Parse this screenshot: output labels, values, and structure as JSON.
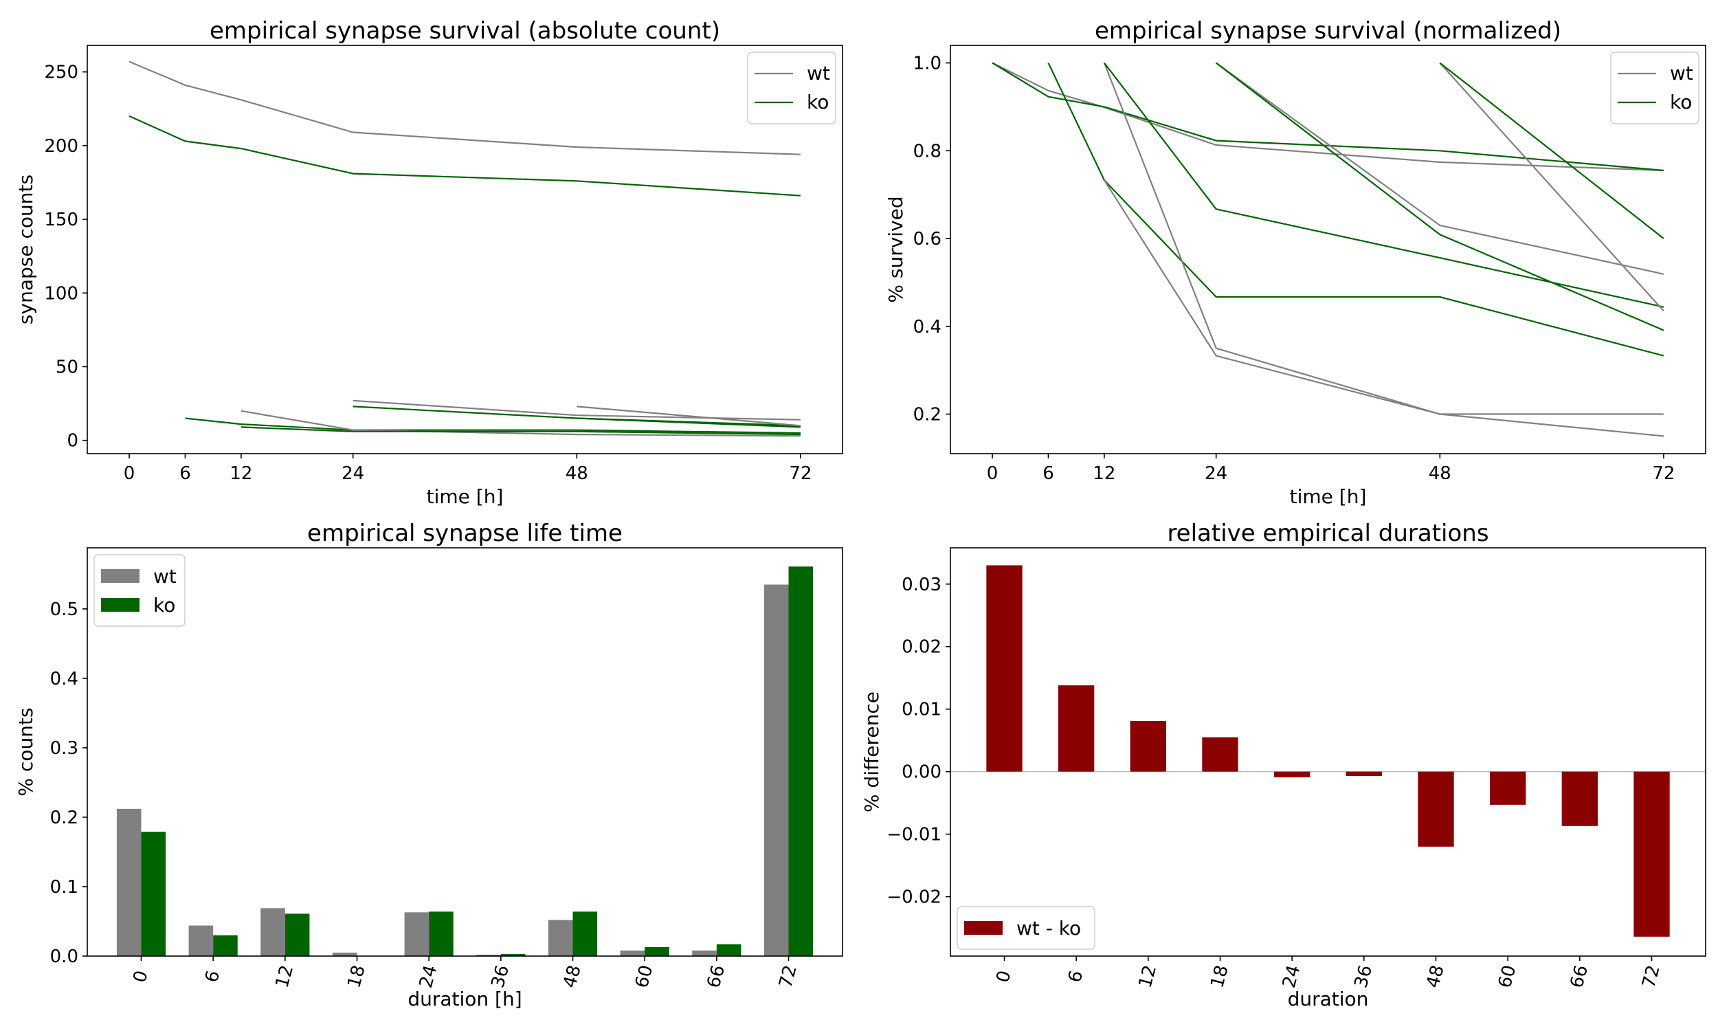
{
  "chart_data": [
    {
      "type": "line",
      "title": "empirical synapse survival (absolute count)",
      "xlabel": "time [h]",
      "ylabel": "synapse counts",
      "xlim": [
        -4.5,
        76.5
      ],
      "ylim": [
        -9,
        268
      ],
      "xticks": [
        0,
        6,
        12,
        24,
        48,
        72
      ],
      "yticks": [
        0,
        50,
        100,
        150,
        200,
        250
      ],
      "legend": {
        "position": "top-right",
        "entries": [
          {
            "label": "wt",
            "color": "#808080"
          },
          {
            "label": "ko",
            "color": "#006400"
          }
        ]
      },
      "series": [
        {
          "group": "wt",
          "color": "#808080",
          "x": [
            0,
            6,
            12,
            24,
            48,
            72
          ],
          "y": [
            257,
            241,
            231,
            209,
            199,
            194
          ]
        },
        {
          "group": "ko",
          "color": "#006400",
          "x": [
            0,
            6,
            12,
            24,
            48,
            72
          ],
          "y": [
            220,
            203,
            198,
            181,
            176,
            166
          ]
        },
        {
          "group": "ko",
          "color": "#006400",
          "x": [
            6,
            12,
            24,
            48,
            72
          ],
          "y": [
            15,
            11,
            7,
            7,
            5
          ]
        },
        {
          "group": "wt",
          "color": "#808080",
          "x": [
            12,
            24,
            48,
            72
          ],
          "y": [
            20,
            7,
            4,
            3
          ]
        },
        {
          "group": "ko",
          "color": "#006400",
          "x": [
            12,
            24,
            48,
            72
          ],
          "y": [
            9,
            6,
            6,
            4
          ]
        },
        {
          "group": "wt",
          "color": "#808080",
          "x": [
            24,
            48,
            72
          ],
          "y": [
            27,
            17,
            14
          ]
        },
        {
          "group": "ko",
          "color": "#006400",
          "x": [
            24,
            48,
            72
          ],
          "y": [
            23,
            15,
            10
          ]
        },
        {
          "group": "wt",
          "color": "#808080",
          "x": [
            48,
            72
          ],
          "y": [
            23,
            10
          ]
        },
        {
          "group": "ko",
          "color": "#006400",
          "x": [
            48,
            72
          ],
          "y": [
            15,
            9
          ]
        }
      ]
    },
    {
      "type": "line",
      "title": "empirical synapse survival (normalized)",
      "xlabel": "time [h]",
      "ylabel": "% survived",
      "xlim": [
        -4.5,
        76.5
      ],
      "ylim": [
        0.11,
        1.04
      ],
      "xticks": [
        0,
        6,
        12,
        24,
        48,
        72
      ],
      "yticks": [
        0.2,
        0.4,
        0.6,
        0.8,
        1.0
      ],
      "legend": {
        "position": "top-right",
        "entries": [
          {
            "label": "wt",
            "color": "#808080"
          },
          {
            "label": "ko",
            "color": "#006400"
          }
        ]
      },
      "series": [
        {
          "group": "wt",
          "color": "#808080",
          "x": [
            0,
            6,
            12,
            24,
            48,
            72
          ],
          "y": [
            1.0,
            0.937,
            0.899,
            0.813,
            0.774,
            0.755
          ]
        },
        {
          "group": "ko",
          "color": "#006400",
          "x": [
            0,
            6,
            12,
            24,
            48,
            72
          ],
          "y": [
            1.0,
            0.923,
            0.9,
            0.823,
            0.8,
            0.755
          ]
        },
        {
          "group": "ko",
          "color": "#006400",
          "x": [
            6,
            12,
            24,
            48,
            72
          ],
          "y": [
            1.0,
            0.733,
            0.467,
            0.467,
            0.333
          ]
        },
        {
          "group": "wt",
          "color": "#808080",
          "x": [
            12,
            24,
            48,
            72
          ],
          "y": [
            1.0,
            0.35,
            0.2,
            0.15
          ]
        },
        {
          "group": "ko",
          "color": "#006400",
          "x": [
            12,
            24,
            48,
            72
          ],
          "y": [
            1.0,
            0.667,
            0.556,
            0.444
          ]
        },
        {
          "group": "wt",
          "color": "#808080",
          "x": [
            12,
            24,
            48,
            72
          ],
          "y": [
            0.733,
            0.333,
            0.2,
            0.2
          ]
        },
        {
          "group": "wt",
          "color": "#808080",
          "x": [
            24,
            48,
            72
          ],
          "y": [
            1.0,
            0.63,
            0.519
          ]
        },
        {
          "group": "ko",
          "color": "#006400",
          "x": [
            24,
            48,
            72
          ],
          "y": [
            1.0,
            0.609,
            0.391
          ]
        },
        {
          "group": "wt",
          "color": "#808080",
          "x": [
            48,
            72
          ],
          "y": [
            1.0,
            0.435
          ]
        },
        {
          "group": "ko",
          "color": "#006400",
          "x": [
            48,
            72
          ],
          "y": [
            1.0,
            0.6
          ]
        }
      ]
    },
    {
      "type": "bar",
      "title": "empirical synapse life time",
      "xlabel": "duration [h]",
      "ylabel": "% counts",
      "categories": [
        "0",
        "6",
        "12",
        "18",
        "24",
        "36",
        "48",
        "60",
        "66",
        "72"
      ],
      "ylim": [
        0,
        0.588
      ],
      "yticks": [
        0.0,
        0.1,
        0.2,
        0.3,
        0.4,
        0.5
      ],
      "legend": {
        "position": "top-left"
      },
      "series": [
        {
          "name": "wt",
          "color": "#808080",
          "values": [
            0.212,
            0.044,
            0.069,
            0.005,
            0.063,
            0.002,
            0.052,
            0.008,
            0.008,
            0.535
          ]
        },
        {
          "name": "ko",
          "color": "#006400",
          "values": [
            0.179,
            0.03,
            0.061,
            0.0,
            0.064,
            0.003,
            0.064,
            0.013,
            0.017,
            0.561
          ]
        }
      ]
    },
    {
      "type": "bar",
      "title": "relative empirical durations",
      "xlabel": "duration",
      "ylabel": "% difference",
      "categories": [
        "0",
        "6",
        "12",
        "18",
        "24",
        "36",
        "48",
        "60",
        "66",
        "72"
      ],
      "ylim": [
        -0.0295,
        0.0358
      ],
      "yticks": [
        -0.02,
        -0.01,
        0.0,
        0.01,
        0.02,
        0.03
      ],
      "legend": {
        "position": "bottom-left"
      },
      "series": [
        {
          "name": "wt - ko",
          "color": "#8b0000",
          "values": [
            0.033,
            0.0138,
            0.0081,
            0.0055,
            -0.0009,
            -0.0007,
            -0.012,
            -0.0053,
            -0.0087,
            -0.0264
          ]
        }
      ]
    }
  ]
}
